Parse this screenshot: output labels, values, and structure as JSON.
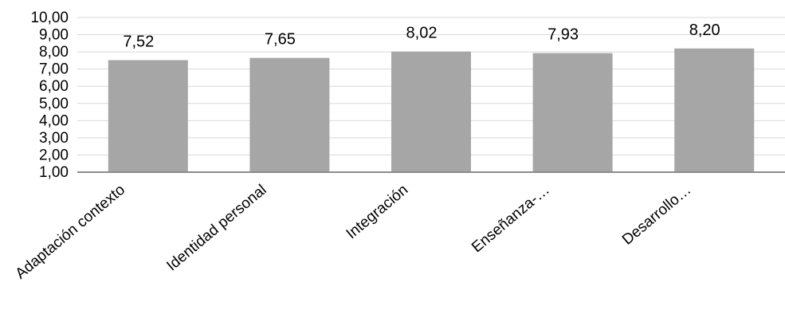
{
  "chart_data": {
    "type": "bar",
    "categories": [
      "Adaptación contexto",
      "Identidad personal",
      "Integración",
      "Enseñanza-…",
      "Desarrollo…"
    ],
    "values": [
      7.52,
      7.65,
      8.02,
      7.93,
      8.2
    ],
    "value_labels": [
      "7,52",
      "7,65",
      "8,02",
      "7,93",
      "8,20"
    ],
    "ylim": [
      1,
      10
    ],
    "y_ticks": [
      "1,00",
      "2,00",
      "3,00",
      "4,00",
      "5,00",
      "6,00",
      "7,00",
      "8,00",
      "9,00",
      "10,00"
    ],
    "grid": true,
    "colors": {
      "bar": "#a6a6a6",
      "grid": "#d9d9d9",
      "axis": "#8c8c8c"
    }
  }
}
